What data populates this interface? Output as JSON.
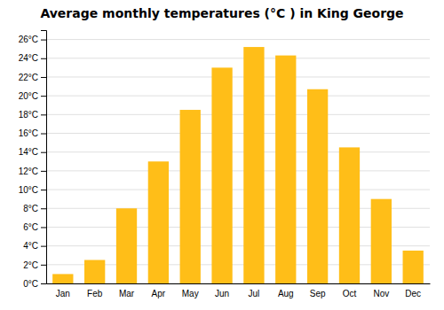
{
  "chart_data": {
    "type": "bar",
    "title": "Average monthly temperatures (°C ) in King George",
    "categories": [
      "Jan",
      "Feb",
      "Mar",
      "Apr",
      "May",
      "Jun",
      "Jul",
      "Aug",
      "Sep",
      "Oct",
      "Nov",
      "Dec"
    ],
    "values": [
      1.0,
      2.5,
      8.0,
      13.0,
      18.5,
      23.0,
      25.2,
      24.3,
      20.7,
      14.5,
      9.0,
      3.5
    ],
    "color": "#FFBE18",
    "ylim": [
      0,
      27
    ],
    "yticks": [
      {
        "value": 0,
        "label": "0°C"
      },
      {
        "value": 2,
        "label": "2°C"
      },
      {
        "value": 4,
        "label": "4°C"
      },
      {
        "value": 6,
        "label": "6°C"
      },
      {
        "value": 8,
        "label": "8°C"
      },
      {
        "value": 10,
        "label": "10°C"
      },
      {
        "value": 12,
        "label": "12°C"
      },
      {
        "value": 14,
        "label": "14°C"
      },
      {
        "value": 16,
        "label": "16°C"
      },
      {
        "value": 18,
        "label": "18°C"
      },
      {
        "value": 20,
        "label": "20°C"
      },
      {
        "value": 22,
        "label": "22°C"
      },
      {
        "value": 24,
        "label": "24°C"
      },
      {
        "value": 26,
        "label": "26°C"
      }
    ],
    "grid": true
  }
}
